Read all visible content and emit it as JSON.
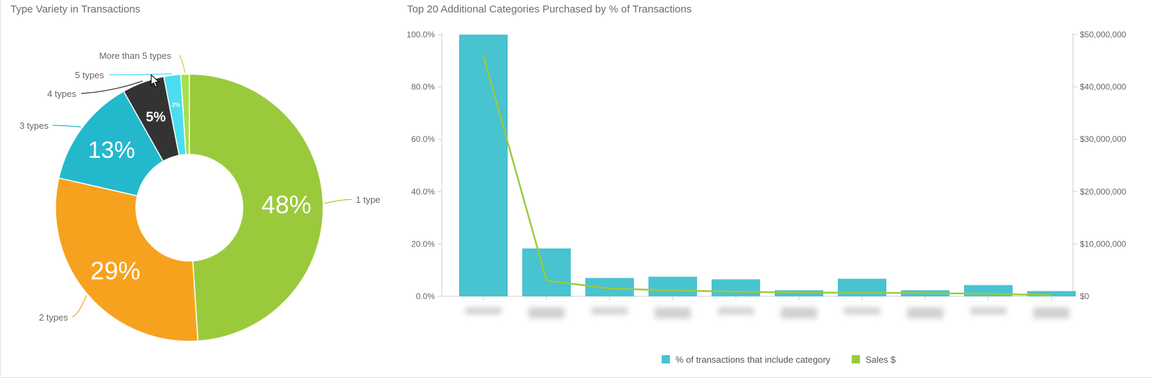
{
  "panels": {
    "donut": {
      "title": "Type Variety in Transactions"
    },
    "bar": {
      "title": "Top 20 Additional Categories Purchased by % of Transactions"
    }
  },
  "chart_data": [
    {
      "type": "pie",
      "variant": "donut",
      "title": "Type Variety in Transactions",
      "slices": [
        {
          "label": "1 type",
          "value": 48,
          "display": "48%",
          "color": "#9ACA3C"
        },
        {
          "label": "2 types",
          "value": 29,
          "display": "29%",
          "color": "#F7A21E"
        },
        {
          "label": "3 types",
          "value": 13,
          "display": "13%",
          "color": "#23B8CC"
        },
        {
          "label": "4 types",
          "value": 5,
          "display": "5%",
          "color": "#333333"
        },
        {
          "label": "5 types",
          "value": 2,
          "display": "2%",
          "color": "#4DDDF0"
        },
        {
          "label": "More than 5 types",
          "value": 1,
          "display": "",
          "color": "#A6E04C"
        }
      ]
    },
    {
      "type": "bar",
      "title": "Top 20 Additional Categories Purchased by % of Transactions",
      "categories": [
        "",
        "",
        "",
        "",
        "",
        "",
        "",
        "",
        "",
        ""
      ],
      "category_labels_obscured": true,
      "y_left": {
        "ylim": [
          0,
          100
        ],
        "ticks": [
          "0.0%",
          "20.0%",
          "40.0%",
          "60.0%",
          "80.0%",
          "100.0%"
        ]
      },
      "y_right": {
        "ylim": [
          0,
          50000000
        ],
        "ticks": [
          "$0",
          "$10,000,000",
          "$20,000,000",
          "$30,000,000",
          "$40,000,000",
          "$50,000,000"
        ]
      },
      "series": [
        {
          "name": "% of transactions that include category",
          "kind": "bar",
          "axis": "left",
          "color": "#48C3D0",
          "values": [
            100,
            18.3,
            7.0,
            7.5,
            6.5,
            2.3,
            6.7,
            2.3,
            4.3,
            2.0
          ]
        },
        {
          "name": "Sales $",
          "kind": "line",
          "axis": "right",
          "color": "#9ACA3C",
          "values": [
            46000000,
            3000000,
            1500000,
            1100000,
            900000,
            700000,
            700000,
            600000,
            500000,
            200000
          ]
        }
      ],
      "legend": "bottom-center"
    }
  ]
}
